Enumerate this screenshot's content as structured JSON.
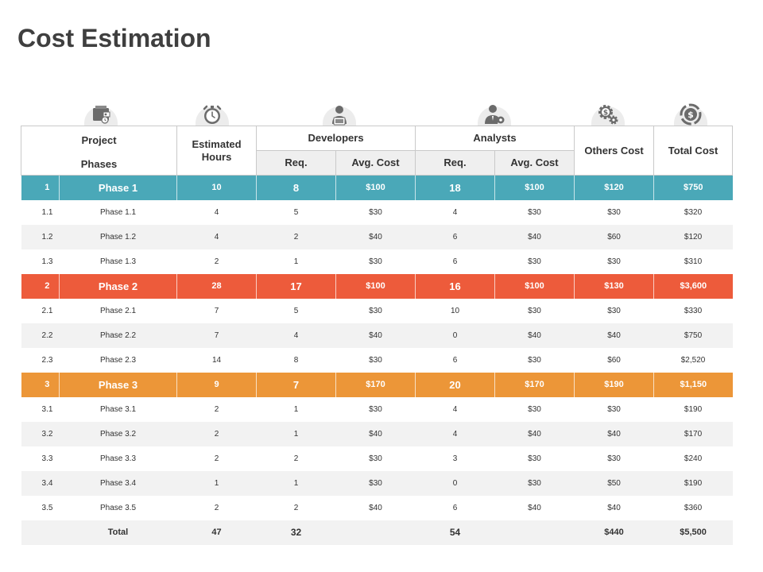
{
  "title": "Cost Estimation",
  "icons": [
    "wallet-icon",
    "stopwatch-icon",
    "developer-icon",
    "analyst-icon",
    "gears-dollar-icon",
    "dollar-cycle-icon"
  ],
  "header": {
    "project_line1": "Project",
    "project_line2": "Phases",
    "estimated_hours": "Estimated Hours",
    "developers": "Developers",
    "analysts": "Analysts",
    "others_cost": "Others Cost",
    "total_cost": "Total Cost",
    "req": "Req.",
    "avg_cost": "Avg. Cost"
  },
  "phases": [
    {
      "id": "1",
      "name": "Phase 1",
      "hours": "10",
      "dev_req": "8",
      "dev_avg": "$100",
      "an_req": "18",
      "an_avg": "$100",
      "others": "$120",
      "total": "$750",
      "rows": [
        {
          "id": "1.1",
          "name": "Phase 1.1",
          "hours": "4",
          "dev_req": "5",
          "dev_avg": "$30",
          "an_req": "4",
          "an_avg": "$30",
          "others": "$30",
          "total": "$320"
        },
        {
          "id": "1.2",
          "name": "Phase 1.2",
          "hours": "4",
          "dev_req": "2",
          "dev_avg": "$40",
          "an_req": "6",
          "an_avg": "$40",
          "others": "$60",
          "total": "$120"
        },
        {
          "id": "1.3",
          "name": "Phase 1.3",
          "hours": "2",
          "dev_req": "1",
          "dev_avg": "$30",
          "an_req": "6",
          "an_avg": "$30",
          "others": "$30",
          "total": "$310"
        }
      ]
    },
    {
      "id": "2",
      "name": "Phase 2",
      "hours": "28",
      "dev_req": "17",
      "dev_avg": "$100",
      "an_req": "16",
      "an_avg": "$100",
      "others": "$130",
      "total": "$3,600",
      "rows": [
        {
          "id": "2.1",
          "name": "Phase 2.1",
          "hours": "7",
          "dev_req": "5",
          "dev_avg": "$30",
          "an_req": "10",
          "an_avg": "$30",
          "others": "$30",
          "total": "$330"
        },
        {
          "id": "2.2",
          "name": "Phase 2.2",
          "hours": "7",
          "dev_req": "4",
          "dev_avg": "$40",
          "an_req": "0",
          "an_avg": "$40",
          "others": "$40",
          "total": "$750"
        },
        {
          "id": "2.3",
          "name": "Phase 2.3",
          "hours": "14",
          "dev_req": "8",
          "dev_avg": "$30",
          "an_req": "6",
          "an_avg": "$30",
          "others": "$60",
          "total": "$2,520"
        }
      ]
    },
    {
      "id": "3",
      "name": "Phase 3",
      "hours": "9",
      "dev_req": "7",
      "dev_avg": "$170",
      "an_req": "20",
      "an_avg": "$170",
      "others": "$190",
      "total": "$1,150",
      "rows": [
        {
          "id": "3.1",
          "name": "Phase 3.1",
          "hours": "2",
          "dev_req": "1",
          "dev_avg": "$30",
          "an_req": "4",
          "an_avg": "$30",
          "others": "$30",
          "total": "$190"
        },
        {
          "id": "3.2",
          "name": "Phase 3.2",
          "hours": "2",
          "dev_req": "1",
          "dev_avg": "$40",
          "an_req": "4",
          "an_avg": "$40",
          "others": "$40",
          "total": "$170"
        },
        {
          "id": "3.3",
          "name": "Phase 3.3",
          "hours": "2",
          "dev_req": "2",
          "dev_avg": "$30",
          "an_req": "3",
          "an_avg": "$30",
          "others": "$30",
          "total": "$240"
        },
        {
          "id": "3.4",
          "name": "Phase 3.4",
          "hours": "1",
          "dev_req": "1",
          "dev_avg": "$30",
          "an_req": "0",
          "an_avg": "$30",
          "others": "$50",
          "total": "$190"
        },
        {
          "id": "3.5",
          "name": "Phase 3.5",
          "hours": "2",
          "dev_req": "2",
          "dev_avg": "$40",
          "an_req": "6",
          "an_avg": "$40",
          "others": "$40",
          "total": "$360"
        }
      ]
    }
  ],
  "total": {
    "label": "Total",
    "hours": "47",
    "dev_req": "32",
    "dev_avg": "",
    "an_req": "54",
    "an_avg": "",
    "others": "$440",
    "total": "$5,500"
  },
  "colors": {
    "phase_1": "#4aa8b8",
    "phase_2": "#ed5b3b",
    "phase_3": "#ec9638",
    "row_alt": "#f2f2f2",
    "icon": "#6b6b6b"
  }
}
